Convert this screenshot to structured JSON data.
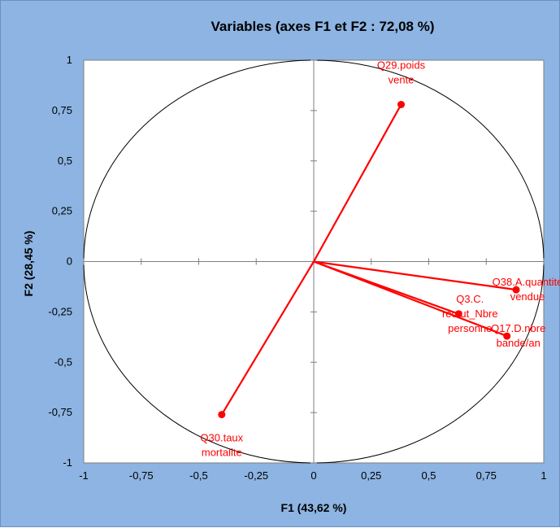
{
  "chart_data": {
    "type": "scatter",
    "subtype": "correlation-circle",
    "title": "Variables (axes F1 et F2 : 72,08 %)",
    "xlabel": "F1 (43,62 %)",
    "ylabel": "F2 (28,45 %)",
    "xlim": [
      -1,
      1
    ],
    "ylim": [
      -1,
      1
    ],
    "x_ticks": [
      "-1",
      "-0,75",
      "-0,5",
      "-0,25",
      "0",
      "0,25",
      "0,5",
      "0,75",
      "1"
    ],
    "y_ticks": [
      "-1",
      "-0,75",
      "-0,5",
      "-0,25",
      "0",
      "0,25",
      "0,5",
      "0,75",
      "1"
    ],
    "unit_circle": true,
    "grid": false,
    "colors": {
      "background": "#8db4e2",
      "plot_area": "#ffffff",
      "series": "#ff0000"
    },
    "points": [
      {
        "label_lines": [
          "Q29.poids",
          "vente"
        ],
        "x": 0.38,
        "y": 0.78
      },
      {
        "label_lines": [
          "Q38.A.quantite",
          "vendue"
        ],
        "x": 0.88,
        "y": -0.14
      },
      {
        "label_lines": [
          "Q3.C.",
          "recrut_Nbre",
          "personne"
        ],
        "x": 0.63,
        "y": -0.26
      },
      {
        "label_lines": [
          "Q17.D.nbre",
          "bande/an"
        ],
        "x": 0.84,
        "y": -0.37
      },
      {
        "label_lines": [
          "Q30.taux",
          "mortalite"
        ],
        "x": -0.4,
        "y": -0.76
      }
    ]
  }
}
